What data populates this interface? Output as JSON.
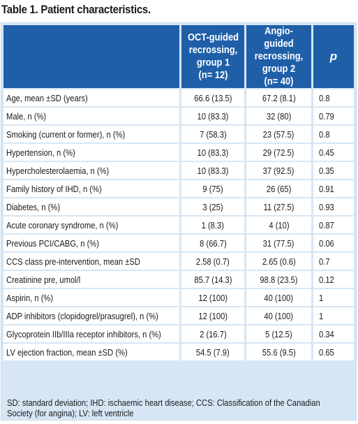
{
  "title": "Table 1. Patient characteristics.",
  "columns": {
    "label": "",
    "oct": [
      "OCT-guided",
      "recrossing,",
      "group 1",
      "(n= 12)"
    ],
    "angio": [
      "Angio-guided",
      "recrossing,",
      "group 2",
      "(n= 40)"
    ],
    "p": "p"
  },
  "rows": [
    {
      "label": "Age, mean ±SD (years)",
      "oct": "66.6 (13.5)",
      "angio": "67.2 (8.1)",
      "p": "0.8"
    },
    {
      "label": "Male, n (%)",
      "oct": "10 (83.3)",
      "angio": "32 (80)",
      "p": "0.79"
    },
    {
      "label": "Smoking (current or former), n (%)",
      "oct": "7 (58.3)",
      "angio": "23 (57.5)",
      "p": "0.8"
    },
    {
      "label": "Hypertension, n (%)",
      "oct": "10 (83.3)",
      "angio": "29 (72.5)",
      "p": "0.45"
    },
    {
      "label": "Hypercholesterolaemia, n (%)",
      "oct": "10 (83.3)",
      "angio": "37 (92.5)",
      "p": "0.35"
    },
    {
      "label": "Family history of IHD, n (%)",
      "oct": "9 (75)",
      "angio": "26 (65)",
      "p": "0.91"
    },
    {
      "label": "Diabetes, n (%)",
      "oct": "3 (25)",
      "angio": "11 (27.5)",
      "p": "0.93"
    },
    {
      "label": "Acute coronary syndrome, n (%)",
      "oct": "1 (8.3)",
      "angio": "4 (10)",
      "p": "0.87"
    },
    {
      "label": "Previous PCI/CABG, n (%)",
      "oct": "8 (66.7)",
      "angio": "31 (77.5)",
      "p": "0.06"
    },
    {
      "label": "CCS class pre-intervention, mean ±SD",
      "oct": "2.58 (0.7)",
      "angio": "2.65 (0.6)",
      "p": "0.7"
    },
    {
      "label": "Creatinine pre, umol/l",
      "oct": "85.7 (14.3)",
      "angio": "98.8 (23.5)",
      "p": "0.12"
    },
    {
      "label": "Aspirin, n (%)",
      "oct": "12 (100)",
      "angio": "40 (100)",
      "p": "1"
    },
    {
      "label": "ADP inhibitors (clopidogrel/prasugrel), n (%)",
      "oct": "12 (100)",
      "angio": "40 (100)",
      "p": "1"
    },
    {
      "label": "Glycoprotein IIb/IIIa receptor inhibitors, n (%)",
      "oct": "2 (16.7)",
      "angio": "5 (12.5)",
      "p": "0.34"
    },
    {
      "label": "LV ejection fraction, mean ±SD (%)",
      "oct": "54.5 (7.9)",
      "angio": "55.6 (9.5)",
      "p": "0.65"
    }
  ],
  "footnote": [
    "SD: standard deviation; IHD: ischaemic heart disease; CCS: Classification of the Canadian",
    "Society (for angina); LV: left ventricle"
  ],
  "colors": {
    "header_bg": "#1f5fa8",
    "table_bg": "#d6e6f5",
    "cell_bg": "#ffffff"
  }
}
